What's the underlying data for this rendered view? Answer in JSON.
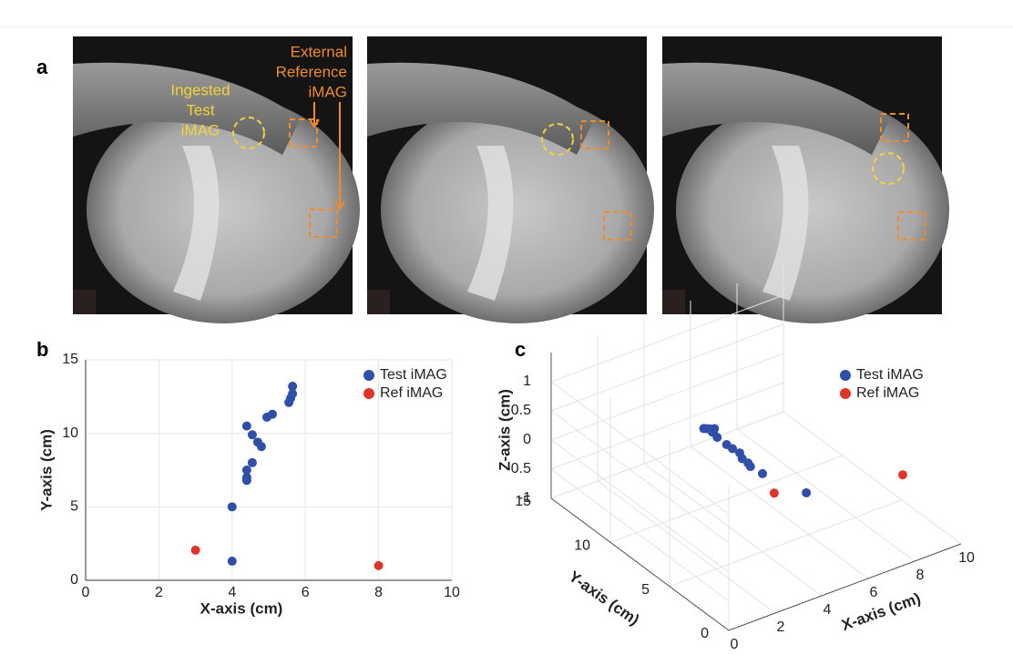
{
  "figure": {
    "panel_labels": [
      "a",
      "b",
      "c"
    ],
    "annotations": {
      "test": [
        "Ingested",
        "Test",
        "iMAG"
      ],
      "reference": [
        "External",
        "Reference",
        "iMAG"
      ]
    }
  },
  "chart_data": [
    {
      "type": "scatter",
      "xlabel": "X-axis (cm)",
      "ylabel": "Y-axis (cm)",
      "xlim": [
        0,
        10
      ],
      "ylim": [
        0,
        15
      ],
      "xticks": [
        0,
        2,
        4,
        6,
        8,
        10
      ],
      "yticks": [
        0,
        5,
        10,
        15
      ],
      "grid": true,
      "legend": "upper right",
      "series": [
        {
          "name": "Test iMAG",
          "color": "#2f4fa8",
          "x": [
            4.0,
            4.0,
            4.4,
            4.4,
            4.4,
            4.55,
            4.4,
            4.55,
            4.7,
            4.8,
            4.95,
            5.1,
            5.55,
            5.6,
            5.65,
            5.65
          ],
          "y": [
            1.3,
            5.0,
            6.8,
            7.0,
            7.5,
            8.0,
            10.5,
            9.9,
            9.4,
            9.1,
            11.1,
            11.3,
            12.1,
            12.4,
            12.7,
            13.2
          ]
        },
        {
          "name": "Ref iMAG",
          "color": "#e0352b",
          "x": [
            3.0,
            8.0
          ],
          "y": [
            2.05,
            1.0
          ]
        }
      ]
    },
    {
      "type": "scatter3d",
      "xlabel": "X-axis (cm)",
      "ylabel": "Y-axis (cm)",
      "zlabel": "Z-axis (cm)",
      "xlim": [
        0,
        10
      ],
      "ylim": [
        0,
        15
      ],
      "zlim": [
        -1,
        1.5
      ],
      "xticks": [
        0,
        2,
        4,
        6,
        8,
        10
      ],
      "yticks": [
        0,
        5,
        10,
        15
      ],
      "zticks": [
        -1,
        -0.5,
        0,
        0.5,
        1
      ],
      "grid": true,
      "legend": "upper right",
      "series": [
        {
          "name": "Test iMAG",
          "color": "#2f4fa8",
          "x": [
            4.0,
            4.0,
            4.4,
            4.4,
            4.4,
            4.55,
            4.4,
            4.55,
            4.7,
            4.8,
            4.95,
            5.1,
            5.55,
            5.6,
            5.65,
            5.65
          ],
          "y": [
            1.3,
            5.0,
            6.8,
            7.0,
            7.5,
            8.0,
            10.5,
            9.9,
            9.4,
            9.1,
            11.1,
            11.3,
            12.1,
            12.4,
            12.7,
            13.2
          ],
          "z": [
            0.57,
            0.34,
            0.13,
            0.16,
            0.16,
            0.16,
            0.22,
            0.14,
            0.07,
            0.03,
            -0.01,
            -0.06,
            -0.19,
            -0.27,
            -0.3,
            -0.37
          ]
        },
        {
          "name": "Ref iMAG",
          "color": "#e0352b",
          "x": [
            3.0,
            8.0
          ],
          "y": [
            2.05,
            1.0
          ],
          "z": [
            0.6,
            0.33
          ]
        }
      ]
    }
  ]
}
